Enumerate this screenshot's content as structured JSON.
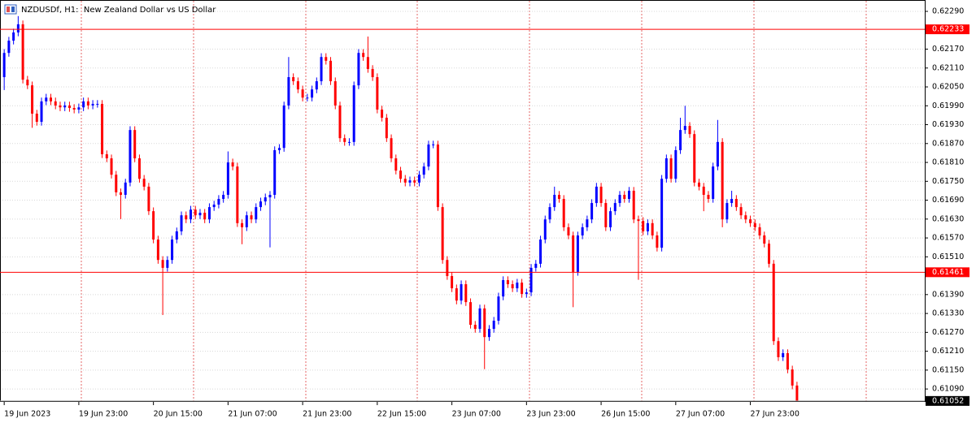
{
  "chart_data": {
    "type": "candlestick",
    "title": "NZDUSDf, H1:  New Zealand Dollar vs US Dollar",
    "up_color": "#0000ff",
    "down_color": "#ff0000",
    "ylim": [
      0.61049,
      0.62321
    ],
    "xlim": [
      -0.9,
      197.4
    ],
    "yticks": [
      {
        "value": 0.6229,
        "label": "0.62290"
      },
      {
        "value": 0.6217,
        "label": "0.62170"
      },
      {
        "value": 0.6211,
        "label": "0.62110"
      },
      {
        "value": 0.6205,
        "label": "0.62050"
      },
      {
        "value": 0.6199,
        "label": "0.61990"
      },
      {
        "value": 0.6193,
        "label": "0.61930"
      },
      {
        "value": 0.6187,
        "label": "0.61870"
      },
      {
        "value": 0.6181,
        "label": "0.61810"
      },
      {
        "value": 0.6175,
        "label": "0.61750"
      },
      {
        "value": 0.6169,
        "label": "0.61690"
      },
      {
        "value": 0.6163,
        "label": "0.61630"
      },
      {
        "value": 0.6157,
        "label": "0.61570"
      },
      {
        "value": 0.6151,
        "label": "0.61510"
      },
      {
        "value": 0.6139,
        "label": "0.61390"
      },
      {
        "value": 0.6133,
        "label": "0.61330"
      },
      {
        "value": 0.6127,
        "label": "0.61270"
      },
      {
        "value": 0.6121,
        "label": "0.61210"
      },
      {
        "value": 0.6115,
        "label": "0.61150"
      },
      {
        "value": 0.6109,
        "label": "0.61090"
      }
    ],
    "xticks": [
      {
        "value": 0,
        "label": "19 Jun 2023"
      },
      {
        "value": 16,
        "label": "19 Jun 23:00"
      },
      {
        "value": 32,
        "label": "20 Jun 15:00"
      },
      {
        "value": 48,
        "label": "21 Jun 07:00"
      },
      {
        "value": 64,
        "label": "21 Jun 23:00"
      },
      {
        "value": 80,
        "label": "22 Jun 15:00"
      },
      {
        "value": 96,
        "label": "23 Jun 07:00"
      },
      {
        "value": 112,
        "label": "23 Jun 23:00"
      },
      {
        "value": 128,
        "label": "26 Jun 15:00"
      },
      {
        "value": 144,
        "label": "27 Jun 07:00"
      },
      {
        "value": 160,
        "label": "27 Jun 23:00"
      }
    ],
    "price_lines": [
      0.62233,
      0.61461
    ],
    "price_line_color": "#ff0000",
    "bid": 0.61052,
    "bid_color": "#000000",
    "grid": true,
    "open": [
      0.62081,
      0.62158,
      0.62197,
      0.62223,
      0.62249,
      0.62073,
      0.62055,
      0.61965,
      0.61939,
      0.62004,
      0.62016,
      0.62004,
      0.61991,
      0.61985,
      0.61991,
      0.61983,
      0.61978,
      0.61985,
      0.62004,
      0.61991,
      0.61996,
      0.61996,
      0.61836,
      0.61823,
      0.61771,
      0.61715,
      0.61707,
      0.61746,
      0.61913,
      0.61823,
      0.61758,
      0.61733,
      0.61655,
      0.61565,
      0.615,
      0.61475,
      0.615,
      0.61565,
      0.61591,
      0.61642,
      0.61629,
      0.6166,
      0.61642,
      0.6165,
      0.61629,
      0.61668,
      0.61676,
      0.61694,
      0.61707,
      0.6181,
      0.61797,
      0.61617,
      0.61604,
      0.61642,
      0.61629,
      0.61668,
      0.61686,
      0.61699,
      0.61707,
      0.61849,
      0.61856,
      0.61991,
      0.62081,
      0.62068,
      0.62042,
      0.62016,
      0.62016,
      0.62042,
      0.62068,
      0.62145,
      0.62133,
      0.62068,
      0.61991,
      0.61887,
      0.61875,
      0.61875,
      0.62055,
      0.62158,
      0.62145,
      0.62107,
      0.62081,
      0.61978,
      0.61952,
      0.61887,
      0.61823,
      0.61784,
      0.61758,
      0.61746,
      0.61753,
      0.61746,
      0.61771,
      0.61797,
      0.61867,
      0.61867,
      0.61668,
      0.615,
      0.61449,
      0.6141,
      0.61371,
      0.61423,
      0.61366,
      0.61294,
      0.61281,
      0.61346,
      0.61255,
      0.61281,
      0.61307,
      0.61384,
      0.61436,
      0.61423,
      0.6141,
      0.61428,
      0.61392,
      0.61397,
      0.61475,
      0.61488,
      0.61565,
      0.61629,
      0.61668,
      0.61707,
      0.61694,
      0.61604,
      0.61578,
      0.61462,
      0.61578,
      0.61604,
      0.61629,
      0.61681,
      0.61733,
      0.61681,
      0.61604,
      0.61655,
      0.61681,
      0.61707,
      0.61694,
      0.6172,
      0.61629,
      0.61624,
      0.61591,
      0.61617,
      0.61578,
      0.61539,
      0.61758,
      0.61823,
      0.61758,
      0.61849,
      0.61913,
      0.61926,
      0.619,
      0.61746,
      0.61733,
      0.61707,
      0.61694,
      0.61797,
      0.61875,
      0.61629,
      0.61681,
      0.61694,
      0.61668,
      0.61642,
      0.61629,
      0.61617,
      0.61604,
      0.61578,
      0.61552,
      0.61488,
      0.61242,
      0.61191,
      0.61204,
      0.61152,
      0.61101
    ],
    "high": [
      0.6217,
      0.62209,
      0.62235,
      0.62275,
      0.62261,
      0.62085,
      0.62067,
      0.61977,
      0.62016,
      0.62028,
      0.62028,
      0.62016,
      0.62003,
      0.62003,
      0.62003,
      0.61995,
      0.61997,
      0.62016,
      0.62016,
      0.62008,
      0.62008,
      0.62008,
      0.61848,
      0.61835,
      0.61783,
      0.61727,
      0.61758,
      0.61925,
      0.61925,
      0.61835,
      0.6177,
      0.61745,
      0.61667,
      0.61577,
      0.61512,
      0.61512,
      0.61577,
      0.61603,
      0.61654,
      0.61654,
      0.61672,
      0.61672,
      0.61662,
      0.61662,
      0.6168,
      0.61688,
      0.61706,
      0.61719,
      0.61845,
      0.61822,
      0.61809,
      0.61629,
      0.61654,
      0.61654,
      0.6168,
      0.61698,
      0.61711,
      0.61719,
      0.61861,
      0.61868,
      0.62003,
      0.62145,
      0.62093,
      0.6208,
      0.62054,
      0.62028,
      0.62054,
      0.6208,
      0.62157,
      0.62157,
      0.62145,
      0.6208,
      0.62003,
      0.61899,
      0.61887,
      0.62067,
      0.6217,
      0.6217,
      0.6221,
      0.62119,
      0.62093,
      0.6199,
      0.61964,
      0.61899,
      0.61835,
      0.61796,
      0.6177,
      0.61765,
      0.61765,
      0.61783,
      0.61809,
      0.61879,
      0.61879,
      0.61879,
      0.6168,
      0.61512,
      0.61461,
      0.61422,
      0.61435,
      0.61435,
      0.61378,
      0.61306,
      0.61358,
      0.61358,
      0.61293,
      0.61319,
      0.61396,
      0.61448,
      0.61448,
      0.61435,
      0.6144,
      0.6144,
      0.61409,
      0.61487,
      0.615,
      0.61577,
      0.61641,
      0.6168,
      0.61733,
      0.61719,
      0.61706,
      0.61616,
      0.6159,
      0.6159,
      0.61616,
      0.61641,
      0.61693,
      0.61745,
      0.61745,
      0.61693,
      0.61667,
      0.61693,
      0.61719,
      0.61719,
      0.61732,
      0.61732,
      0.61641,
      0.61636,
      0.61629,
      0.61629,
      0.6159,
      0.6177,
      0.61835,
      0.61835,
      0.61861,
      0.61952,
      0.6199,
      0.61938,
      0.61912,
      0.61758,
      0.61745,
      0.61719,
      0.61809,
      0.61945,
      0.61887,
      0.61693,
      0.6172,
      0.61706,
      0.6168,
      0.61654,
      0.61641,
      0.61629,
      0.61616,
      0.6159,
      0.61564,
      0.615,
      0.61254,
      0.61216,
      0.61216,
      0.61164,
      0.61113
    ],
    "low": [
      0.6204,
      0.62146,
      0.62185,
      0.62211,
      0.62061,
      0.62043,
      0.6192,
      0.61927,
      0.61927,
      0.61992,
      0.61992,
      0.61979,
      0.61973,
      0.61973,
      0.61971,
      0.61966,
      0.61966,
      0.61973,
      0.61979,
      0.61979,
      0.61984,
      0.61824,
      0.61811,
      0.61759,
      0.61703,
      0.6163,
      0.61695,
      0.61734,
      0.61811,
      0.61746,
      0.61721,
      0.61643,
      0.61553,
      0.61488,
      0.61325,
      0.61463,
      0.61488,
      0.61553,
      0.61579,
      0.61617,
      0.61617,
      0.6163,
      0.6163,
      0.61617,
      0.61617,
      0.61656,
      0.61664,
      0.61682,
      0.61695,
      0.61785,
      0.61605,
      0.6155,
      0.61592,
      0.61617,
      0.61617,
      0.61656,
      0.61674,
      0.6154,
      0.61695,
      0.61837,
      0.61844,
      0.61979,
      0.62056,
      0.6203,
      0.62004,
      0.62004,
      0.62004,
      0.6203,
      0.62056,
      0.62121,
      0.62056,
      0.61979,
      0.61875,
      0.61863,
      0.61863,
      0.61863,
      0.62043,
      0.62133,
      0.62095,
      0.62069,
      0.61966,
      0.6194,
      0.61875,
      0.61811,
      0.61772,
      0.61746,
      0.61734,
      0.61734,
      0.61734,
      0.61734,
      0.61759,
      0.61785,
      0.61855,
      0.61656,
      0.61488,
      0.61437,
      0.61398,
      0.61359,
      0.61359,
      0.61354,
      0.61282,
      0.61269,
      0.61269,
      0.61153,
      0.61243,
      0.61269,
      0.61295,
      0.61372,
      0.61411,
      0.61398,
      0.61398,
      0.6138,
      0.6138,
      0.61385,
      0.61463,
      0.61476,
      0.61553,
      0.61617,
      0.61656,
      0.61682,
      0.61592,
      0.61566,
      0.6135,
      0.6145,
      0.61566,
      0.61592,
      0.61617,
      0.61669,
      0.61669,
      0.61592,
      0.61592,
      0.61643,
      0.61669,
      0.61682,
      0.61682,
      0.61617,
      0.61437,
      0.61579,
      0.61579,
      0.61566,
      0.61527,
      0.61527,
      0.61746,
      0.61746,
      0.61746,
      0.61837,
      0.61901,
      0.61888,
      0.61734,
      0.61721,
      0.61655,
      0.61682,
      0.61682,
      0.61785,
      0.61604,
      0.61617,
      0.61669,
      0.61656,
      0.6163,
      0.61617,
      0.61605,
      0.61592,
      0.61566,
      0.6154,
      0.61476,
      0.6123,
      0.61179,
      0.61179,
      0.6114,
      0.61089,
      0.6105
    ],
    "close": [
      0.62158,
      0.62197,
      0.62223,
      0.62249,
      0.62073,
      0.62055,
      0.61965,
      0.61939,
      0.62004,
      0.62016,
      0.62004,
      0.61991,
      0.61985,
      0.61991,
      0.61983,
      0.61978,
      0.61985,
      0.62004,
      0.61991,
      0.61996,
      0.61996,
      0.61836,
      0.61823,
      0.61771,
      0.61715,
      0.61707,
      0.61746,
      0.61913,
      0.61823,
      0.61758,
      0.61733,
      0.61655,
      0.61565,
      0.615,
      0.61475,
      0.615,
      0.61565,
      0.61591,
      0.61642,
      0.61629,
      0.6166,
      0.61642,
      0.6165,
      0.61629,
      0.61668,
      0.61676,
      0.61694,
      0.61707,
      0.6181,
      0.61797,
      0.61617,
      0.61604,
      0.61642,
      0.61629,
      0.61668,
      0.61686,
      0.61699,
      0.61707,
      0.61849,
      0.61856,
      0.61991,
      0.62081,
      0.62068,
      0.62042,
      0.62016,
      0.62016,
      0.62042,
      0.62068,
      0.62145,
      0.62133,
      0.62068,
      0.61991,
      0.61887,
      0.61875,
      0.61875,
      0.62055,
      0.62158,
      0.62145,
      0.62107,
      0.62081,
      0.61978,
      0.61952,
      0.61887,
      0.61823,
      0.61784,
      0.61758,
      0.61746,
      0.61753,
      0.61746,
      0.61771,
      0.61797,
      0.61867,
      0.61867,
      0.61668,
      0.615,
      0.61449,
      0.6141,
      0.61371,
      0.61423,
      0.61366,
      0.61294,
      0.61281,
      0.61346,
      0.61255,
      0.61281,
      0.61307,
      0.61384,
      0.61436,
      0.61423,
      0.6141,
      0.61428,
      0.61392,
      0.61397,
      0.61475,
      0.61488,
      0.61565,
      0.61629,
      0.61668,
      0.61707,
      0.61694,
      0.61604,
      0.61578,
      0.61462,
      0.61578,
      0.61604,
      0.61629,
      0.61681,
      0.61733,
      0.61681,
      0.61604,
      0.61655,
      0.61681,
      0.61707,
      0.61694,
      0.6172,
      0.61629,
      0.61624,
      0.61591,
      0.61617,
      0.61578,
      0.61539,
      0.61758,
      0.61823,
      0.61758,
      0.61849,
      0.61913,
      0.61926,
      0.619,
      0.61746,
      0.61733,
      0.61707,
      0.61694,
      0.61797,
      0.61875,
      0.61629,
      0.61681,
      0.61694,
      0.61668,
      0.61642,
      0.61629,
      0.61617,
      0.61604,
      0.61578,
      0.61552,
      0.61488,
      0.61242,
      0.61191,
      0.61204,
      0.61152,
      0.61101,
      0.61052
    ]
  }
}
